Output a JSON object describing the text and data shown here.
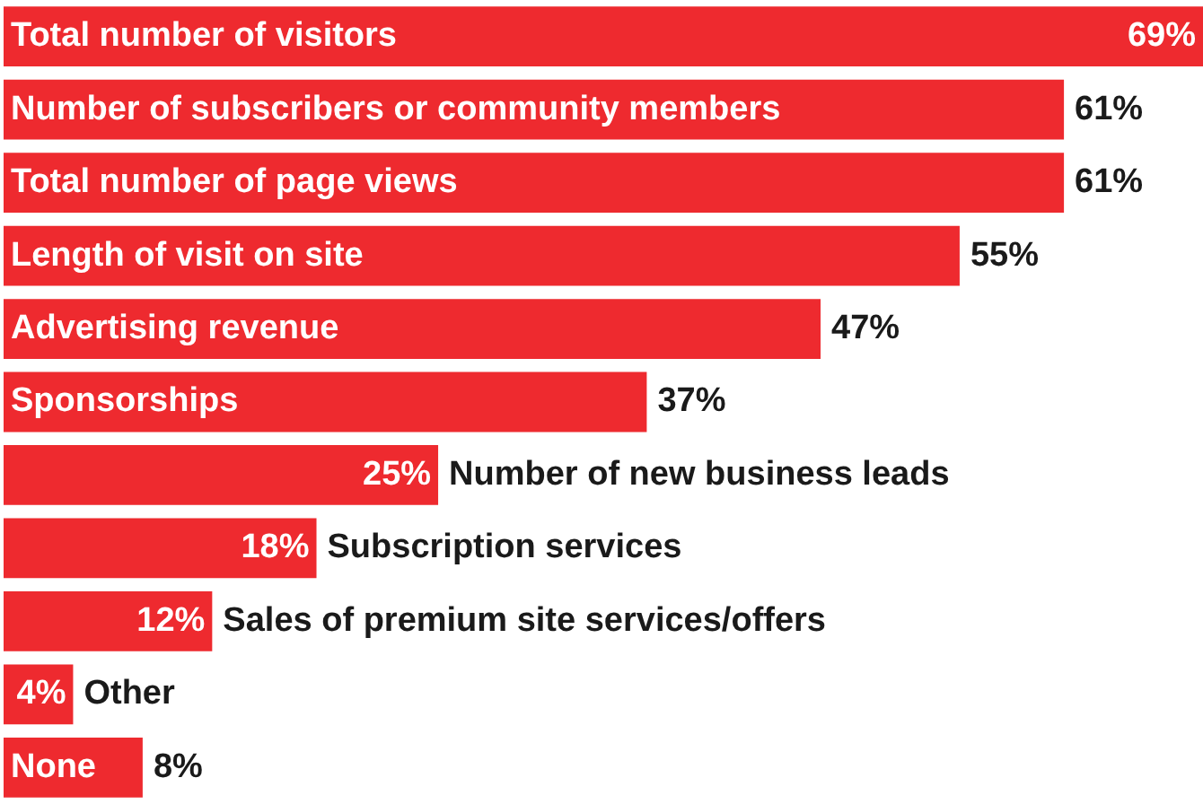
{
  "chart_data": {
    "type": "bar",
    "orientation": "horizontal",
    "relative": false,
    "categories": [
      "Total number of visitors",
      "Number of subscribers or community members",
      "Total number of page views",
      "Length of visit on site",
      "Advertising revenue",
      "Sponsorships",
      "Number of new business leads",
      "Subscription services",
      "Sales of premium site services/offers",
      "Other",
      "None"
    ],
    "values": [
      69,
      61,
      61,
      55,
      47,
      37,
      25,
      18,
      12,
      4,
      8
    ],
    "value_labels": [
      "69%",
      "61%",
      "61%",
      "55%",
      "47%",
      "37%",
      "25%",
      "18%",
      "12%",
      "4%",
      "8%"
    ],
    "color": "#ee2a2f",
    "xlim": [
      0,
      69
    ],
    "tick_labels": false
  }
}
